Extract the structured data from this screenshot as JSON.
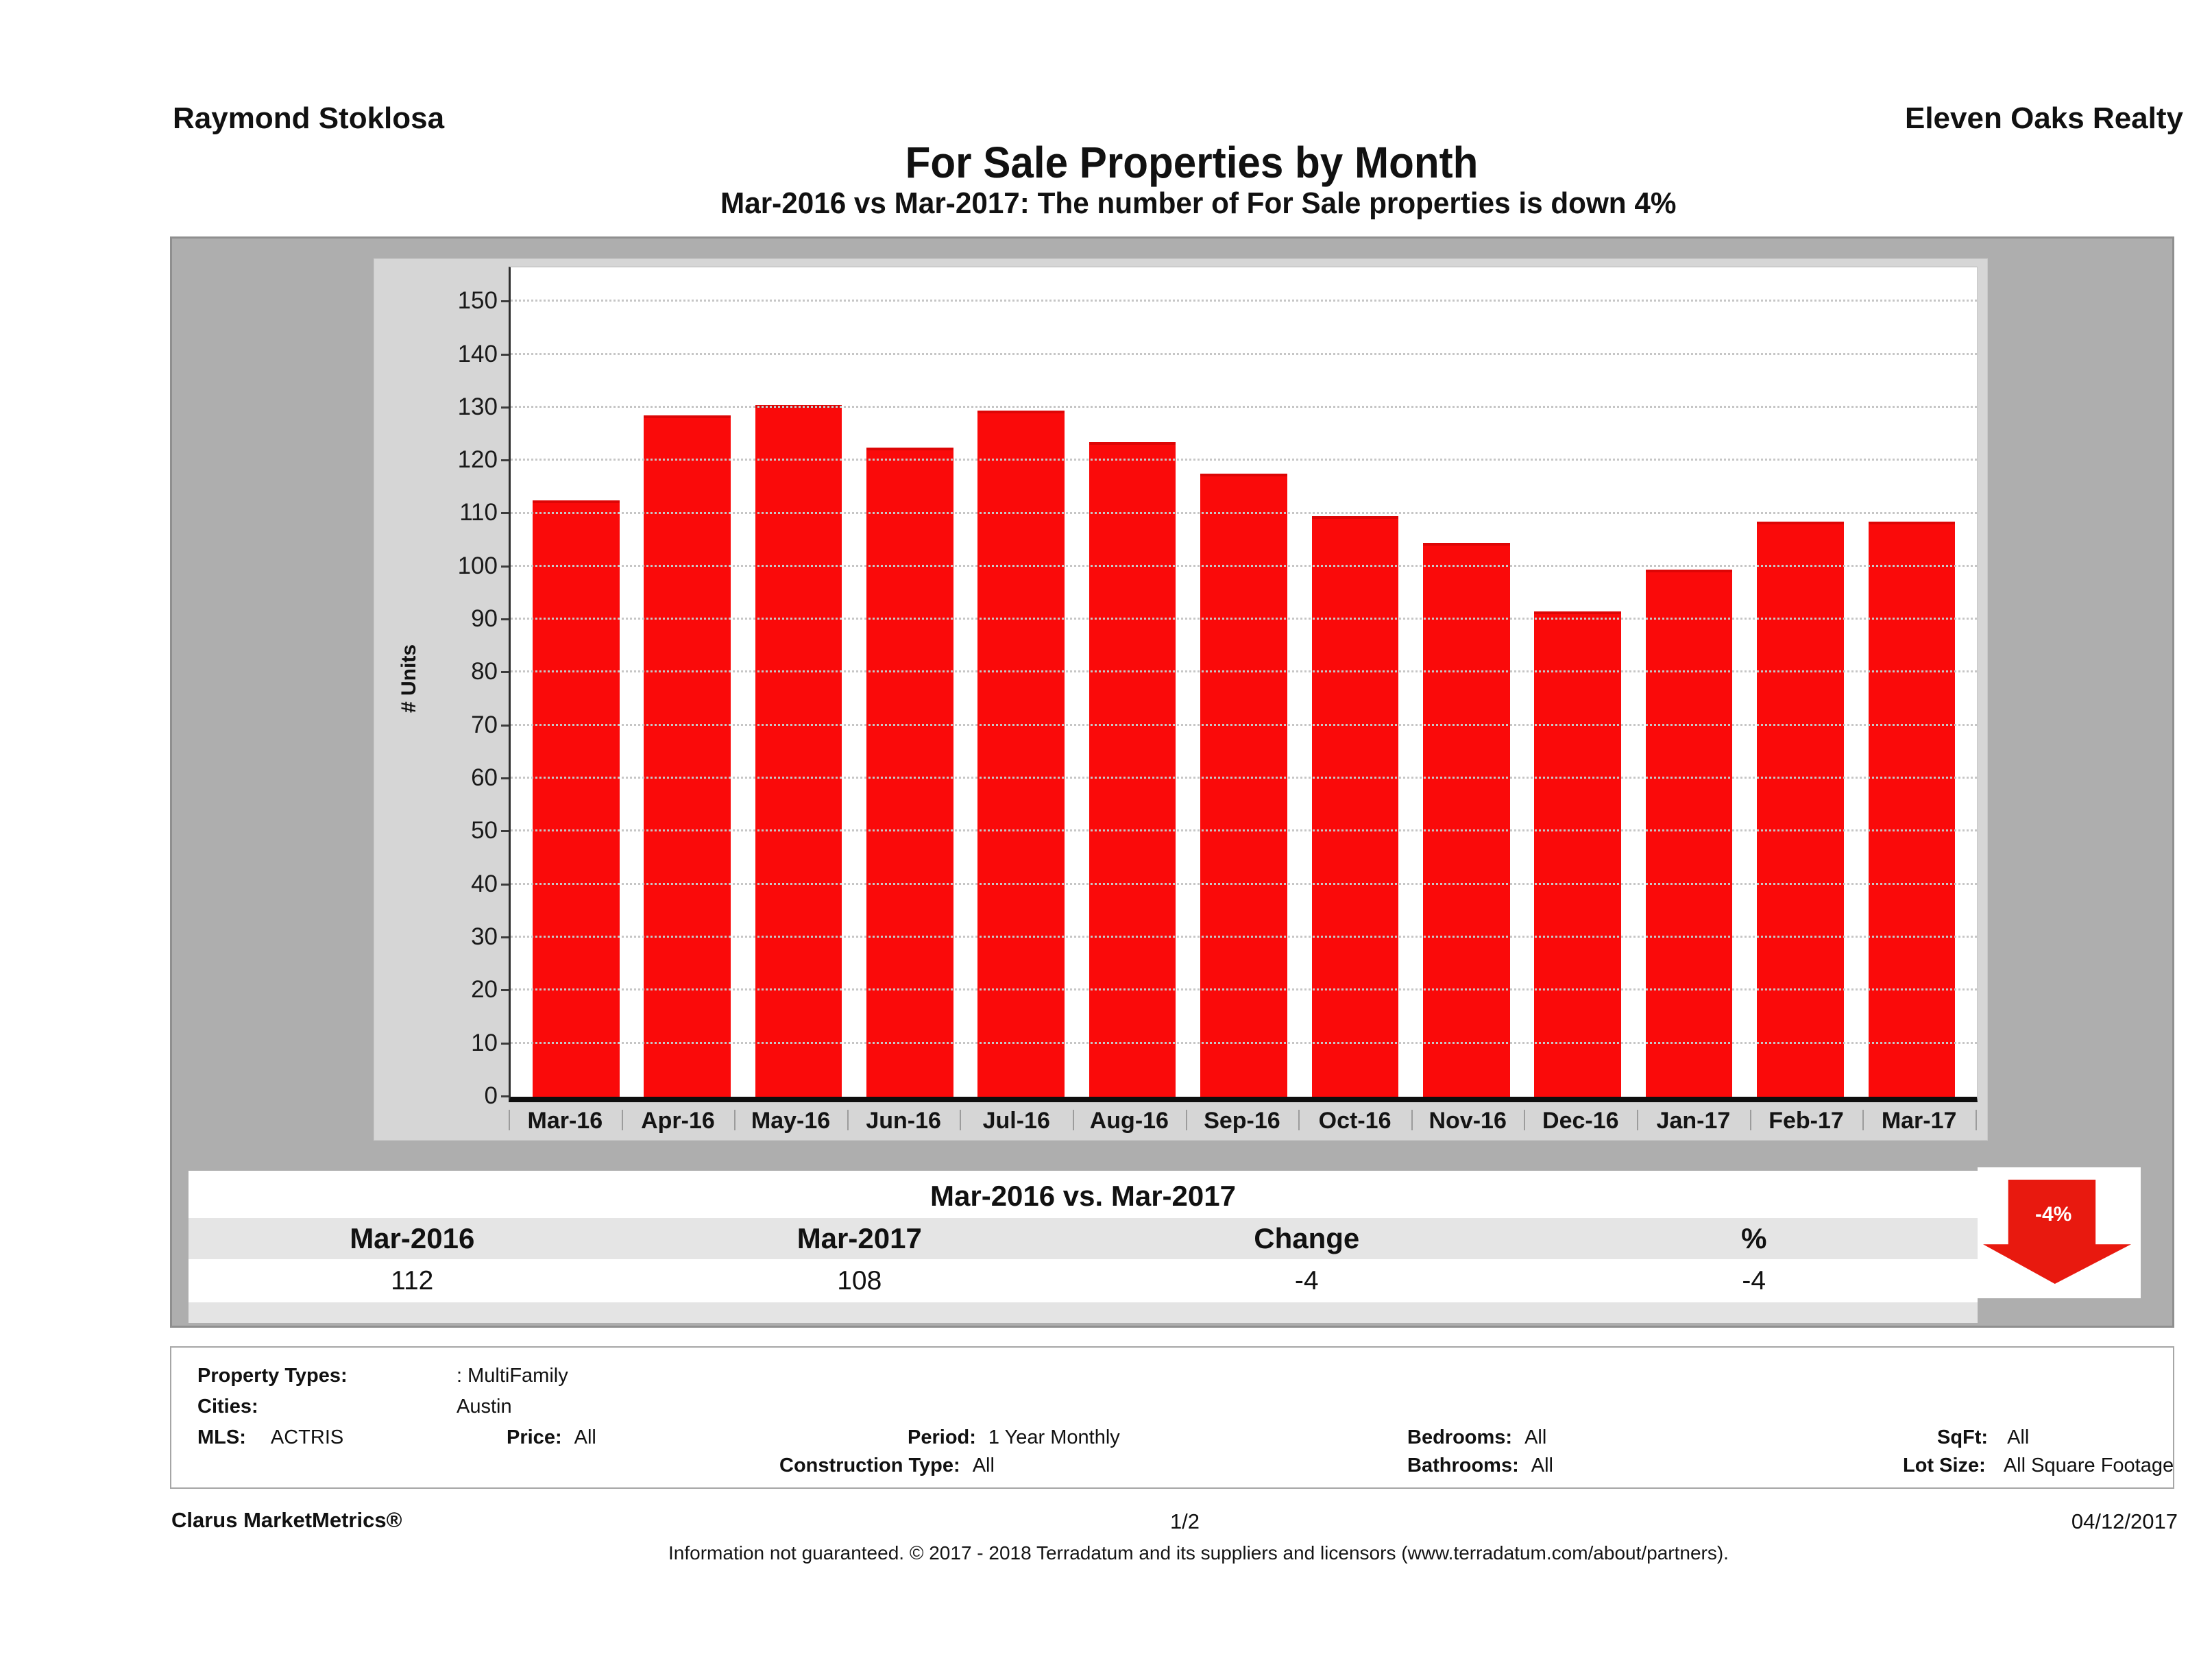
{
  "header": {
    "left": "Raymond Stoklosa",
    "right": "Eleven Oaks Realty"
  },
  "title": "For Sale Properties by Month",
  "subtitle": "Mar-2016 vs Mar-2017: The number of For Sale  properties is down 4%",
  "chart_data": {
    "type": "bar",
    "categories": [
      "Mar-16",
      "Apr-16",
      "May-16",
      "Jun-16",
      "Jul-16",
      "Aug-16",
      "Sep-16",
      "Oct-16",
      "Nov-16",
      "Dec-16",
      "Jan-17",
      "Feb-17",
      "Mar-17"
    ],
    "values": [
      112,
      128,
      130,
      122,
      129,
      123,
      117,
      109,
      104,
      91,
      99,
      108,
      108
    ],
    "title": "For Sale Properties by Month",
    "xlabel": "",
    "ylabel": "# Units",
    "ylim": [
      0,
      150
    ],
    "ytick_step": 10,
    "grid": true,
    "legend": "none"
  },
  "summary": {
    "title": "Mar-2016 vs. Mar-2017",
    "columns": [
      "Mar-2016",
      "Mar-2017",
      "Change",
      "%"
    ],
    "values": [
      "112",
      "108",
      "-4",
      "-4"
    ],
    "arrow_label": "-4%"
  },
  "filters": {
    "property_types_label": "Property Types:",
    "property_types_value": ": MultiFamily",
    "cities_label": "Cities:",
    "cities_value": "Austin",
    "mls_label": "MLS:",
    "mls_value": "ACTRIS",
    "price_label": "Price:",
    "price_value": "All",
    "period_label": "Period:",
    "period_value": "1 Year Monthly",
    "construction_label": "Construction Type:",
    "construction_value": "All",
    "bedrooms_label": "Bedrooms:",
    "bedrooms_value": "All",
    "bathrooms_label": "Bathrooms:",
    "bathrooms_value": "All",
    "sqft_label": "SqFt:",
    "sqft_value": "All",
    "lot_label": "Lot Size:",
    "lot_value": "All Square Footage"
  },
  "footer": {
    "brand": "Clarus MarketMetrics®",
    "page": "1/2",
    "date": "04/12/2017",
    "disclaimer": "Information not guaranteed. © 2017 - 2018 Terradatum and its suppliers and licensors (www.terradatum.com/about/partners)."
  },
  "colors": {
    "bar": "#fa0a0a",
    "arrow": "#e8190f",
    "panel": "#aeaeae",
    "panel_inner": "#d6d6d6",
    "table_header_bg": "#e5e5e5",
    "grid": "#c6c6c6"
  }
}
